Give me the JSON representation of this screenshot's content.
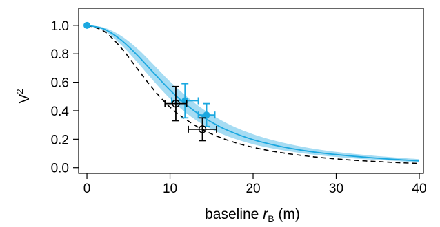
{
  "chart_data": {
    "type": "line",
    "title": "",
    "xlabel": {
      "prefix": "baseline ",
      "italic": "r",
      "subscript": "B",
      "suffix": " (m)"
    },
    "ylabel": {
      "base": "V",
      "superscript": "2"
    },
    "xlim": [
      -1,
      40.5
    ],
    "ylim": [
      -0.04,
      1.12
    ],
    "xticks": [
      0,
      10,
      20,
      30,
      40
    ],
    "yticks": [
      0.0,
      0.2,
      0.4,
      0.6,
      0.8,
      1.0
    ],
    "xtick_labels": [
      "0",
      "10",
      "20",
      "30",
      "40"
    ],
    "ytick_labels": [
      "0.0",
      "0.2",
      "0.4",
      "0.6",
      "0.8",
      "1.0"
    ],
    "grid": false,
    "legend": "none",
    "colors": {
      "model": "#1ba8e0",
      "band": "#a6dcf3",
      "data_blue": "#1ba8e0",
      "data_black": "#000000"
    },
    "series": [
      {
        "style": "solid-blue",
        "x": [
          0,
          2,
          4,
          6,
          8,
          10,
          12,
          14,
          16,
          18,
          20,
          22,
          24,
          26,
          28,
          30,
          32,
          34,
          36,
          38,
          40
        ],
        "y": [
          1.0,
          0.975,
          0.902,
          0.794,
          0.668,
          0.545,
          0.44,
          0.355,
          0.288,
          0.237,
          0.197,
          0.166,
          0.141,
          0.121,
          0.105,
          0.092,
          0.081,
          0.071,
          0.062,
          0.055,
          0.048
        ],
        "band_lower": [
          1.0,
          0.965,
          0.87,
          0.745,
          0.61,
          0.485,
          0.382,
          0.302,
          0.243,
          0.199,
          0.165,
          0.139,
          0.118,
          0.101,
          0.087,
          0.076,
          0.066,
          0.058,
          0.051,
          0.044,
          0.038
        ],
        "band_upper": [
          1.0,
          0.985,
          0.93,
          0.84,
          0.725,
          0.605,
          0.5,
          0.41,
          0.338,
          0.28,
          0.235,
          0.199,
          0.17,
          0.146,
          0.127,
          0.111,
          0.098,
          0.087,
          0.077,
          0.068,
          0.06
        ]
      },
      {
        "style": "dashed-black",
        "x": [
          0,
          2,
          4,
          6,
          8,
          10,
          12,
          14,
          16,
          18,
          20,
          22,
          24,
          26,
          28,
          30,
          32,
          34,
          36,
          38,
          40
        ],
        "y": [
          1.0,
          0.96,
          0.85,
          0.7,
          0.55,
          0.425,
          0.335,
          0.265,
          0.213,
          0.173,
          0.143,
          0.119,
          0.1,
          0.085,
          0.072,
          0.062,
          0.053,
          0.046,
          0.04,
          0.034,
          0.03
        ]
      }
    ],
    "points": [
      {
        "style": "filled-blue",
        "x": 0.0,
        "y": 1.0,
        "xerr": 0.0,
        "yerr": 0.0
      },
      {
        "style": "filled-blue",
        "x": 11.8,
        "y": 0.47,
        "xerr": 1.6,
        "yerr": 0.12
      },
      {
        "style": "filled-blue",
        "x": 14.4,
        "y": 0.37,
        "xerr": 1.0,
        "yerr": 0.08
      },
      {
        "style": "open-black",
        "x": 10.7,
        "y": 0.45,
        "xerr": 1.3,
        "yerr": 0.12
      },
      {
        "style": "open-black",
        "x": 13.9,
        "y": 0.27,
        "xerr": 1.7,
        "yerr": 0.08
      }
    ]
  }
}
